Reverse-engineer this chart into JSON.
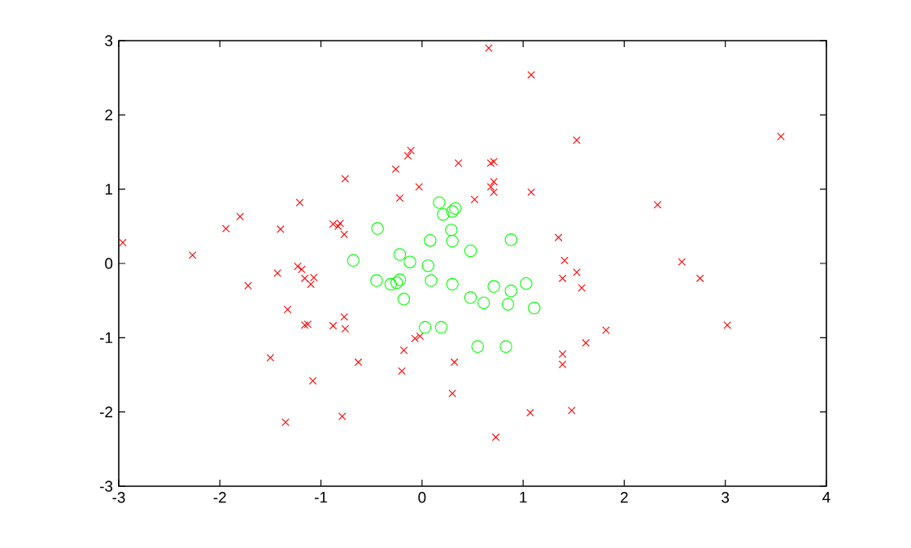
{
  "chart_data": {
    "type": "scatter",
    "xlim": [
      -3,
      4
    ],
    "ylim": [
      -3,
      3
    ],
    "xticks": [
      -3,
      -2,
      -1,
      0,
      1,
      2,
      3,
      4
    ],
    "yticks": [
      -3,
      -2,
      -1,
      0,
      1,
      2,
      3
    ],
    "series": [
      {
        "color": "#ff0000",
        "marker": "cross",
        "x": [
          -2.96,
          -2.27,
          -1.94,
          -1.8,
          -1.72,
          -1.4,
          -1.21,
          -0.76,
          -0.26,
          -0.11,
          -0.14,
          -0.03,
          -0.22,
          -0.88,
          -0.81,
          -0.83,
          -0.77,
          -1.43,
          -1.23,
          -1.19,
          -1.16,
          -1.07,
          -1.1,
          -1.33,
          -1.16,
          -1.13,
          -0.88,
          -0.77,
          -0.76,
          -1.5,
          -0.63,
          -1.08,
          -1.35,
          -0.79,
          -0.2,
          -0.18,
          -0.07,
          -0.02,
          0.66,
          1.08,
          0.36,
          0.71,
          0.68,
          0.52,
          0.71,
          0.68,
          0.71,
          1.08,
          1.35,
          1.41,
          1.39,
          0.32,
          0.3,
          0.73,
          1.07,
          1.39,
          1.39,
          1.53,
          3.55,
          2.33,
          1.53,
          1.58,
          2.57,
          2.75,
          1.82,
          3.02,
          1.62,
          1.48
        ],
        "values": [
          0.28,
          0.11,
          0.47,
          0.63,
          -0.3,
          0.46,
          0.82,
          1.14,
          1.27,
          1.52,
          1.45,
          1.03,
          0.88,
          0.53,
          0.54,
          0.5,
          0.39,
          -0.13,
          -0.04,
          -0.08,
          -0.2,
          -0.19,
          -0.28,
          -0.62,
          -0.83,
          -0.82,
          -0.84,
          -0.72,
          -0.88,
          -1.27,
          -1.33,
          -1.58,
          -2.14,
          -2.06,
          -1.45,
          -1.17,
          -1.01,
          -0.98,
          2.9,
          2.54,
          1.35,
          1.37,
          1.35,
          0.86,
          1.1,
          1.03,
          0.96,
          0.96,
          0.35,
          0.04,
          -0.2,
          -1.33,
          -1.75,
          -2.34,
          -2.01,
          -1.22,
          -1.36,
          1.66,
          1.71,
          0.79,
          -0.12,
          -0.33,
          0.02,
          -0.2,
          -0.9,
          -0.83,
          -1.07,
          -1.98
        ]
      },
      {
        "color": "#00ff00",
        "marker": "circle",
        "x": [
          0.17,
          0.21,
          0.3,
          0.33,
          -0.44,
          0.29,
          0.08,
          0.3,
          0.88,
          0.48,
          -0.22,
          -0.12,
          -0.68,
          0.06,
          0.09,
          -0.45,
          -0.31,
          -0.25,
          -0.22,
          -0.18,
          0.3,
          0.48,
          0.61,
          0.71,
          0.88,
          1.03,
          0.85,
          1.11,
          0.03,
          0.19,
          0.55,
          0.83
        ],
        "values": [
          0.82,
          0.66,
          0.7,
          0.74,
          0.47,
          0.45,
          0.31,
          0.3,
          0.32,
          0.17,
          0.12,
          0.02,
          0.04,
          -0.03,
          -0.23,
          -0.23,
          -0.28,
          -0.26,
          -0.22,
          -0.48,
          -0.28,
          -0.46,
          -0.53,
          -0.31,
          -0.37,
          -0.27,
          -0.55,
          -0.6,
          -0.86,
          -0.86,
          -1.12,
          -1.12
        ]
      }
    ]
  }
}
